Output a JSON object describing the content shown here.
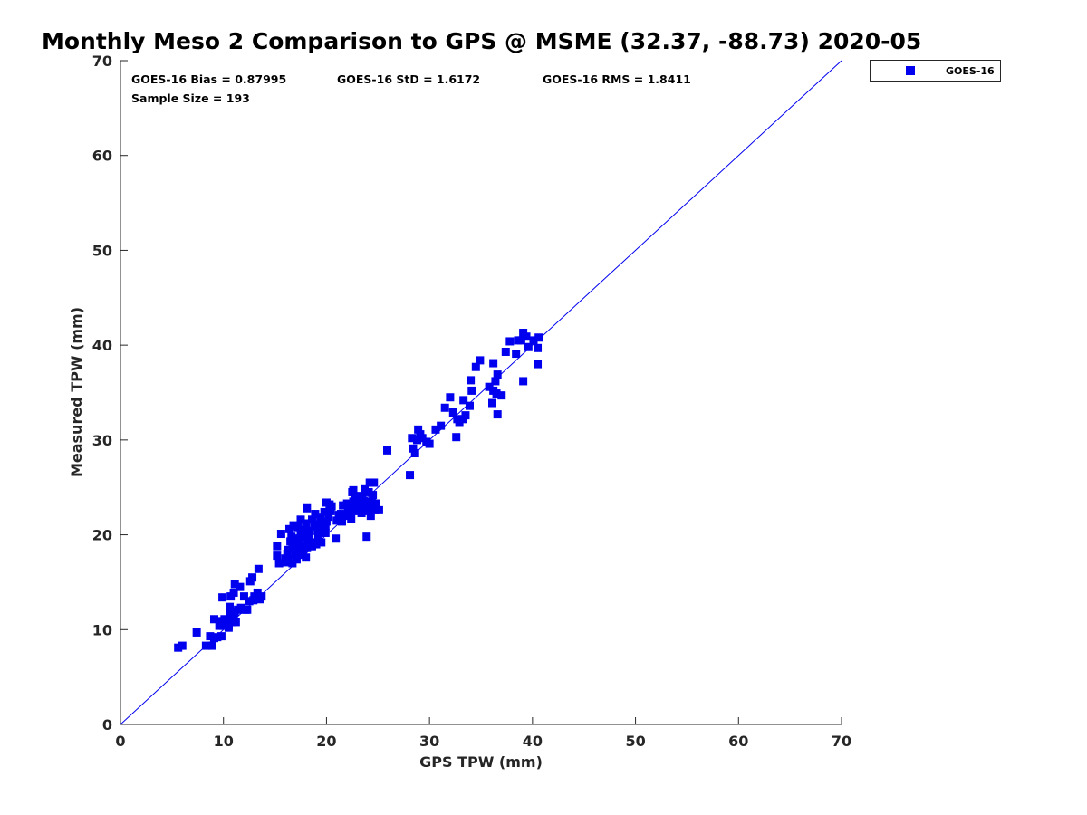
{
  "chart_data": {
    "type": "scatter",
    "title": "Monthly Meso 2 Comparison to GPS @ MSME (32.37, -88.73) 2020-05",
    "xlabel": "GPS TPW (mm)",
    "ylabel": "Measured TPW (mm)",
    "xlim": [
      0,
      70
    ],
    "ylim": [
      0,
      70
    ],
    "xticks": [
      0,
      10,
      20,
      30,
      40,
      50,
      60,
      70
    ],
    "yticks": [
      0,
      10,
      20,
      30,
      40,
      50,
      60,
      70
    ],
    "grid": false,
    "legend_position": "outside-top-right",
    "stats": {
      "bias": "GOES-16 Bias = 0.87995",
      "std": "GOES-16 StD = 1.6172",
      "rms": "GOES-16 RMS = 1.8411",
      "sample": "Sample Size = 193"
    },
    "reference_line": {
      "name": "1:1 line",
      "x": [
        0,
        70
      ],
      "y": [
        0,
        70
      ]
    },
    "series": [
      {
        "name": "GOES-16",
        "marker": "square",
        "color": "#0000ee",
        "points": [
          [
            5.6,
            8.1
          ],
          [
            6.0,
            8.3
          ],
          [
            7.4,
            9.7
          ],
          [
            8.3,
            8.3
          ],
          [
            8.7,
            9.3
          ],
          [
            8.9,
            8.3
          ],
          [
            9.1,
            9.1
          ],
          [
            9.1,
            11.1
          ],
          [
            9.4,
            9.2
          ],
          [
            9.6,
            10.4
          ],
          [
            9.8,
            9.3
          ],
          [
            9.9,
            13.4
          ],
          [
            10.0,
            10.4
          ],
          [
            10.1,
            11.1
          ],
          [
            10.3,
            10.6
          ],
          [
            10.5,
            10.4
          ],
          [
            10.6,
            11.6
          ],
          [
            10.6,
            12.4
          ],
          [
            10.7,
            13.5
          ],
          [
            10.8,
            10.8
          ],
          [
            11.0,
            11.1
          ],
          [
            11.0,
            13.9
          ],
          [
            11.1,
            11.9
          ],
          [
            11.1,
            14.8
          ],
          [
            11.2,
            10.8
          ],
          [
            11.4,
            12.1
          ],
          [
            11.6,
            14.5
          ],
          [
            12.0,
            13.5
          ],
          [
            12.1,
            12.1
          ],
          [
            12.3,
            12.1
          ],
          [
            12.5,
            13.0
          ],
          [
            12.6,
            15.1
          ],
          [
            12.8,
            15.5
          ],
          [
            13.0,
            13.5
          ],
          [
            13.3,
            13.9
          ],
          [
            13.4,
            16.4
          ],
          [
            13.5,
            13.2
          ],
          [
            13.7,
            13.5
          ],
          [
            15.2,
            17.8
          ],
          [
            15.2,
            18.8
          ],
          [
            15.4,
            17.0
          ],
          [
            15.6,
            20.1
          ],
          [
            16.0,
            17.5
          ],
          [
            16.2,
            18.0
          ],
          [
            16.3,
            17.5
          ],
          [
            16.3,
            18.4
          ],
          [
            16.4,
            20.6
          ],
          [
            16.5,
            19.3
          ],
          [
            16.6,
            19.8
          ],
          [
            16.7,
            17.0
          ],
          [
            16.7,
            18.9
          ],
          [
            16.8,
            21.0
          ],
          [
            17.0,
            18.4
          ],
          [
            17.1,
            17.4
          ],
          [
            17.2,
            19.0
          ],
          [
            17.2,
            20.8
          ],
          [
            17.3,
            18.2
          ],
          [
            17.4,
            19.6
          ],
          [
            17.5,
            20.2
          ],
          [
            17.5,
            21.6
          ],
          [
            17.7,
            17.9
          ],
          [
            17.8,
            18.9
          ],
          [
            17.8,
            19.8
          ],
          [
            17.9,
            20.5
          ],
          [
            18.0,
            17.6
          ],
          [
            18.0,
            21.2
          ],
          [
            18.1,
            18.6
          ],
          [
            18.1,
            22.8
          ],
          [
            18.2,
            19.1
          ],
          [
            18.3,
            19.6
          ],
          [
            18.4,
            20.4
          ],
          [
            18.5,
            18.8
          ],
          [
            18.6,
            21.6
          ],
          [
            18.7,
            19.2
          ],
          [
            18.8,
            20.9
          ],
          [
            18.9,
            22.2
          ],
          [
            19.0,
            19.0
          ],
          [
            19.2,
            19.8
          ],
          [
            19.3,
            21.1
          ],
          [
            19.4,
            21.8
          ],
          [
            19.5,
            19.2
          ],
          [
            19.6,
            20.6
          ],
          [
            19.7,
            21.2
          ],
          [
            19.8,
            22.4
          ],
          [
            19.9,
            20.9
          ],
          [
            20.0,
            21.4
          ],
          [
            20.0,
            23.4
          ],
          [
            20.2,
            21.9
          ],
          [
            20.4,
            22.5
          ],
          [
            20.5,
            23.0
          ],
          [
            20.9,
            19.6
          ],
          [
            21.0,
            21.5
          ],
          [
            21.2,
            22.1
          ],
          [
            21.4,
            22.2
          ],
          [
            21.5,
            21.4
          ],
          [
            21.6,
            23.1
          ],
          [
            22.1,
            22.8
          ],
          [
            22.2,
            22.2
          ],
          [
            22.3,
            23.0
          ],
          [
            22.4,
            21.7
          ],
          [
            22.5,
            24.5
          ],
          [
            22.6,
            23.5
          ],
          [
            22.6,
            24.7
          ],
          [
            22.7,
            22.6
          ],
          [
            22.8,
            24.0
          ],
          [
            22.9,
            23.1
          ],
          [
            23.0,
            22.5
          ],
          [
            23.1,
            24.1
          ],
          [
            23.2,
            22.9
          ],
          [
            23.3,
            23.5
          ],
          [
            23.4,
            22.3
          ],
          [
            23.5,
            24.0
          ],
          [
            23.6,
            23.1
          ],
          [
            23.8,
            22.5
          ],
          [
            23.9,
            19.8
          ],
          [
            24.0,
            23.5
          ],
          [
            24.1,
            24.5
          ],
          [
            24.2,
            22.8
          ],
          [
            24.2,
            25.5
          ],
          [
            24.3,
            22.0
          ],
          [
            24.4,
            23.5
          ],
          [
            24.5,
            24.2
          ],
          [
            24.6,
            25.5
          ],
          [
            24.7,
            22.6
          ],
          [
            24.8,
            23.3
          ],
          [
            25.1,
            22.6
          ],
          [
            25.9,
            28.9
          ],
          [
            28.1,
            26.3
          ],
          [
            28.3,
            30.2
          ],
          [
            28.4,
            29.1
          ],
          [
            28.6,
            28.6
          ],
          [
            28.8,
            30.0
          ],
          [
            28.9,
            31.1
          ],
          [
            29.1,
            30.6
          ],
          [
            29.3,
            30.2
          ],
          [
            29.7,
            29.8
          ],
          [
            30.0,
            29.6
          ],
          [
            30.6,
            31.1
          ],
          [
            31.1,
            31.5
          ],
          [
            31.5,
            33.4
          ],
          [
            32.0,
            34.5
          ],
          [
            32.3,
            32.9
          ],
          [
            32.6,
            30.3
          ],
          [
            32.7,
            32.2
          ],
          [
            32.9,
            31.9
          ],
          [
            33.2,
            32.2
          ],
          [
            33.5,
            32.6
          ],
          [
            33.3,
            34.2
          ],
          [
            33.9,
            33.6
          ],
          [
            34.0,
            36.3
          ],
          [
            34.1,
            35.2
          ],
          [
            34.5,
            37.7
          ],
          [
            34.9,
            38.4
          ],
          [
            35.8,
            35.6
          ],
          [
            36.1,
            33.9
          ],
          [
            36.2,
            35.2
          ],
          [
            36.2,
            38.1
          ],
          [
            36.4,
            36.2
          ],
          [
            36.5,
            34.9
          ],
          [
            36.6,
            32.7
          ],
          [
            36.6,
            36.9
          ],
          [
            37.0,
            34.7
          ],
          [
            37.4,
            39.3
          ],
          [
            37.8,
            40.4
          ],
          [
            38.4,
            39.1
          ],
          [
            38.6,
            40.5
          ],
          [
            38.9,
            40.5
          ],
          [
            39.1,
            41.3
          ],
          [
            39.1,
            36.2
          ],
          [
            39.4,
            40.9
          ],
          [
            39.6,
            39.8
          ],
          [
            40.1,
            40.5
          ],
          [
            40.5,
            39.7
          ],
          [
            40.5,
            38.0
          ],
          [
            40.6,
            40.8
          ],
          [
            19.2,
            20.5
          ],
          [
            18.2,
            20.1
          ],
          [
            16.9,
            19.6
          ],
          [
            21.8,
            22.0
          ],
          [
            23.7,
            24.8
          ],
          [
            10.5,
            10.2
          ],
          [
            12.9,
            13.1
          ],
          [
            17.6,
            20.4
          ],
          [
            19.9,
            20.2
          ],
          [
            22.0,
            23.3
          ],
          [
            20.3,
            23.2
          ],
          [
            16.0,
            17.1
          ],
          [
            18.6,
            18.8
          ],
          [
            11.7,
            12.3
          ],
          [
            9.7,
            10.9
          ],
          [
            24.0,
            23.0
          ],
          [
            23.5,
            23.3
          ],
          [
            17.0,
            17.9
          ]
        ]
      }
    ]
  }
}
